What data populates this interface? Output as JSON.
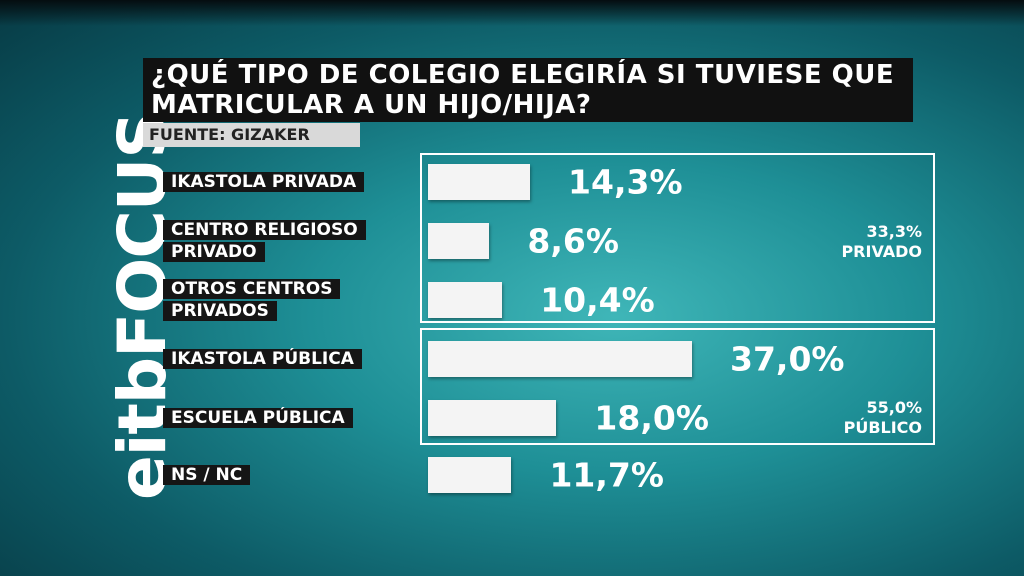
{
  "chart_data": {
    "type": "bar",
    "orientation": "horizontal",
    "title": "¿QUÉ TIPO DE COLEGIO ELEGIRÍA SI TUVIESE QUE MATRICULAR A UN HIJO/HIJA?",
    "source": "FUENTE: GIZAKER",
    "logo": "eitbFOCUS",
    "categories": [
      "IKASTOLA PRIVADA",
      "CENTRO RELIGIOSO PRIVADO",
      "OTROS CENTROS PRIVADOS",
      "IKASTOLA PÚBLICA",
      "ESCUELA PÚBLICA",
      "NS / NC"
    ],
    "values": [
      14.3,
      8.6,
      10.4,
      37.0,
      18.0,
      11.7
    ],
    "value_labels": [
      "14,3%",
      "8,6%",
      "10,4%",
      "37,0%",
      "18,0%",
      "11,7%"
    ],
    "color": "#f4f4f4",
    "groups": [
      {
        "name": "PRIVADO",
        "value": 33.3,
        "value_label": "33,3%"
      },
      {
        "name": "PÚBLICO",
        "value": 55.0,
        "value_label": "55,0%"
      }
    ]
  }
}
